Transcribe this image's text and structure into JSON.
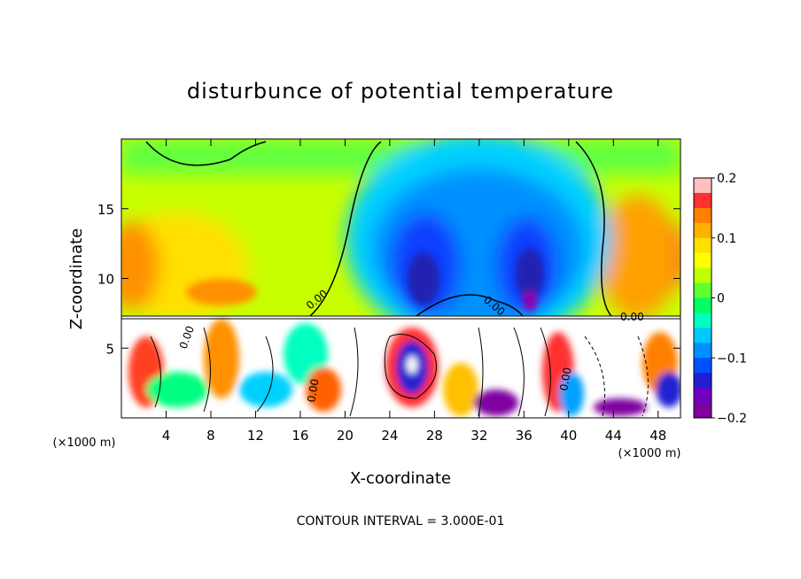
{
  "chart_data": {
    "type": "heatmap",
    "title": "disturbunce of potential temperature",
    "xlabel": "X-coordinate",
    "ylabel": "Z-coordinate",
    "x_unit": "(×1000 m)",
    "x_unit_right": "(×1000 m)",
    "xlim": [
      0,
      50
    ],
    "ylim": [
      0,
      20
    ],
    "xticks": [
      4,
      8,
      12,
      16,
      20,
      24,
      28,
      32,
      36,
      40,
      44,
      48
    ],
    "yticks": [
      5,
      10,
      15
    ],
    "colorbar": {
      "range": [
        -0.2,
        0.2
      ],
      "tick_values": [
        0.2,
        0.1,
        0,
        -0.1,
        -0.2
      ],
      "tick_labels": [
        "0.2",
        "0.1",
        "0",
        "−0.1",
        "−0.2"
      ],
      "colors": [
        "#ffc0c0",
        "#ff3030",
        "#ff8000",
        "#ffb000",
        "#ffe000",
        "#ffff00",
        "#c0ff00",
        "#60ff30",
        "#00ff60",
        "#00ffc0",
        "#00c8ff",
        "#0090ff",
        "#0050ff",
        "#2020d0",
        "#7000c0",
        "#8000a0"
      ]
    },
    "contour_labels": [
      "0.00",
      "0.00",
      "0.00",
      "0.00",
      "0.00",
      "0.00"
    ],
    "annotation": "CONTOUR INTERVAL = 3.000E-01"
  }
}
